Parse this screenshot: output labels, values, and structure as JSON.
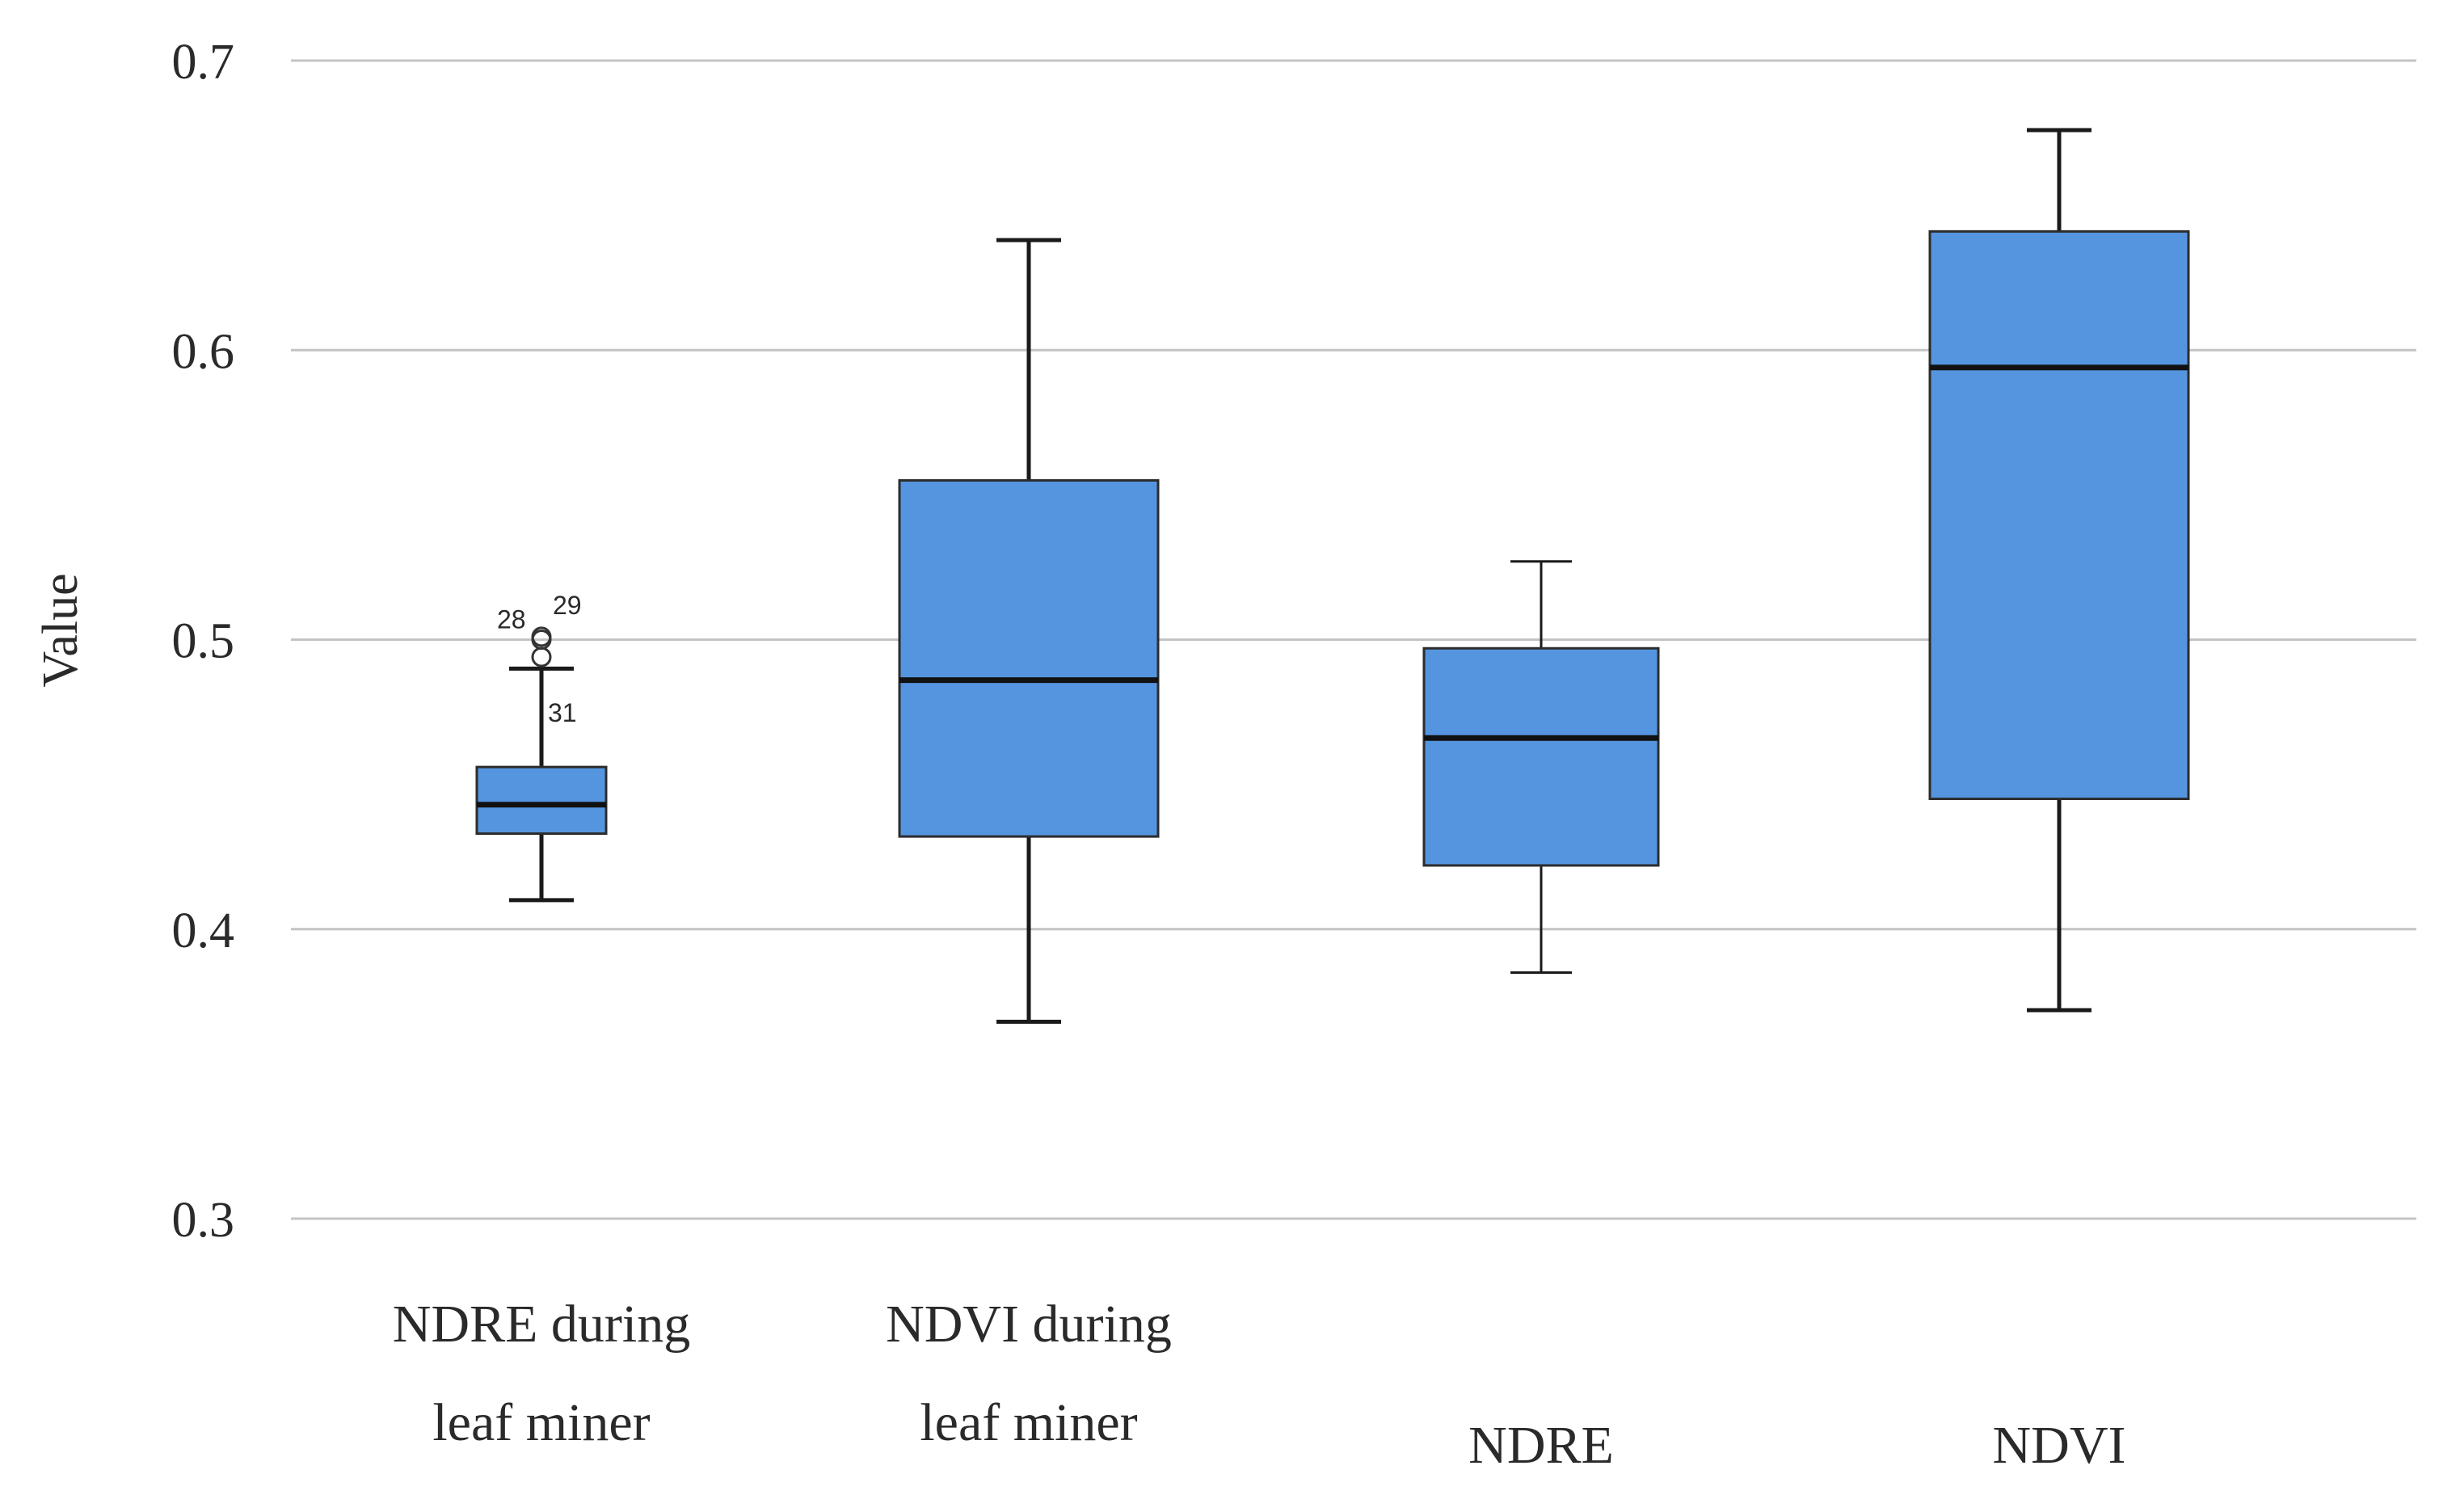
{
  "chart_data": {
    "type": "boxplot",
    "title": "",
    "ylabel": "Value",
    "xlabel": "",
    "ylim": [
      0.3,
      0.7
    ],
    "yticks": [
      "0.3",
      "0.4",
      "0.5",
      "0.6",
      "0.7"
    ],
    "grid": true,
    "categories": [
      {
        "label_lines": [
          "NDRE during",
          "leaf miner"
        ],
        "min": 0.41,
        "q1": 0.433,
        "median": 0.443,
        "q3": 0.456,
        "max": 0.49,
        "outliers": [
          {
            "value": 0.5,
            "label": "28"
          },
          {
            "value": 0.501,
            "label": "29"
          },
          {
            "value": 0.494,
            "label": "31"
          }
        ]
      },
      {
        "label_lines": [
          "NDVI during",
          "leaf miner"
        ],
        "min": 0.368,
        "q1": 0.432,
        "median": 0.486,
        "q3": 0.555,
        "max": 0.638
      },
      {
        "label_lines": [
          "NDRE"
        ],
        "min": 0.385,
        "q1": 0.422,
        "median": 0.466,
        "q3": 0.497,
        "max": 0.527
      },
      {
        "label_lines": [
          "NDVI"
        ],
        "min": 0.372,
        "q1": 0.445,
        "median": 0.594,
        "q3": 0.641,
        "max": 0.676
      }
    ]
  }
}
